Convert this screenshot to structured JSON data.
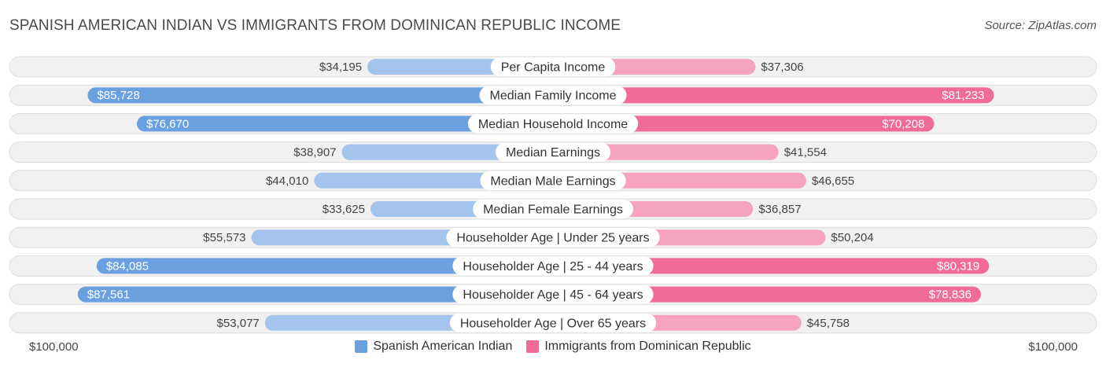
{
  "title": "SPANISH AMERICAN INDIAN VS IMMIGRANTS FROM DOMINICAN REPUBLIC INCOME",
  "source": "Source: ZipAtlas.com",
  "colors": {
    "left_strong": "#6aa0e0",
    "left_light": "#a3c4ec",
    "right_strong": "#f06b96",
    "right_light": "#f5a3be"
  },
  "chart_data": {
    "type": "bar",
    "orientation": "diverging-horizontal",
    "title": "SPANISH AMERICAN INDIAN VS IMMIGRANTS FROM DOMINICAN REPUBLIC INCOME",
    "axis_max": 100000,
    "axis_left_label": "$100,000",
    "axis_right_label": "$100,000",
    "categories": [
      "Per Capita Income",
      "Median Family Income",
      "Median Household Income",
      "Median Earnings",
      "Median Male Earnings",
      "Median Female Earnings",
      "Householder Age | Under 25 years",
      "Householder Age | 25 - 44 years",
      "Householder Age | 45 - 64 years",
      "Householder Age | Over 65 years"
    ],
    "series": [
      {
        "name": "Spanish American Indian",
        "values": [
          34195,
          85728,
          76670,
          38907,
          44010,
          33625,
          55573,
          84085,
          87561,
          53077
        ],
        "labels": [
          "$34,195",
          "$85,728",
          "$76,670",
          "$38,907",
          "$44,010",
          "$33,625",
          "$55,573",
          "$84,085",
          "$87,561",
          "$53,077"
        ]
      },
      {
        "name": "Immigrants from Dominican Republic",
        "values": [
          37306,
          81233,
          70208,
          41554,
          46655,
          36857,
          50204,
          80319,
          78836,
          45758
        ],
        "labels": [
          "$37,306",
          "$81,233",
          "$70,208",
          "$41,554",
          "$46,655",
          "$36,857",
          "$50,204",
          "$80,319",
          "$78,836",
          "$45,758"
        ]
      }
    ],
    "legend_position": "bottom-center"
  }
}
